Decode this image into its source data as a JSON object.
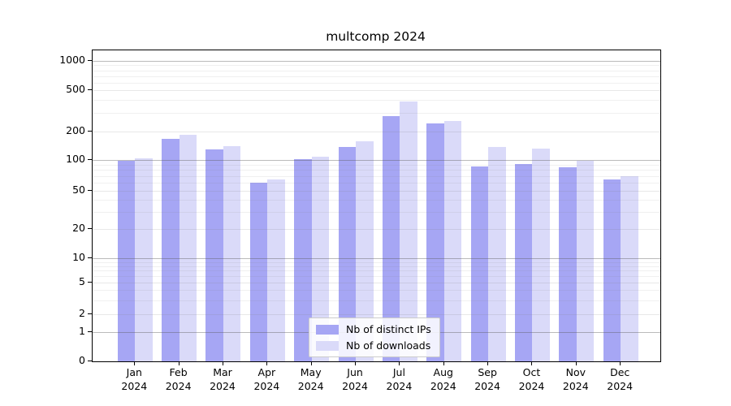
{
  "chart_data": {
    "type": "bar",
    "title": "multcomp 2024",
    "year": "2024",
    "months": [
      "Jan",
      "Feb",
      "Mar",
      "Apr",
      "May",
      "Jun",
      "Jul",
      "Aug",
      "Sep",
      "Oct",
      "Nov",
      "Dec"
    ],
    "series": [
      {
        "name": "Nb of distinct IPs",
        "color": "#a6a6f4",
        "values": [
          99,
          168,
          130,
          60,
          102,
          136,
          280,
          238,
          86,
          91,
          85,
          65
        ]
      },
      {
        "name": "Nb of downloads",
        "color": "#dadaf9",
        "values": [
          105,
          186,
          139,
          64,
          108,
          158,
          390,
          251,
          138,
          131,
          98,
          70
        ]
      }
    ],
    "y_scale": "symlog",
    "y_ticks": [
      0,
      1,
      2,
      5,
      10,
      20,
      50,
      100,
      200,
      500,
      1000
    ],
    "y_major_ticks": [
      1,
      10,
      100,
      1000
    ],
    "y_minor_gridlines": [
      3,
      4,
      6,
      7,
      8,
      9,
      30,
      40,
      60,
      70,
      80,
      90,
      300,
      400,
      600,
      700,
      800,
      900
    ],
    "ylim": [
      0,
      1150
    ],
    "grid": true,
    "legend_position": "bottom-center"
  }
}
